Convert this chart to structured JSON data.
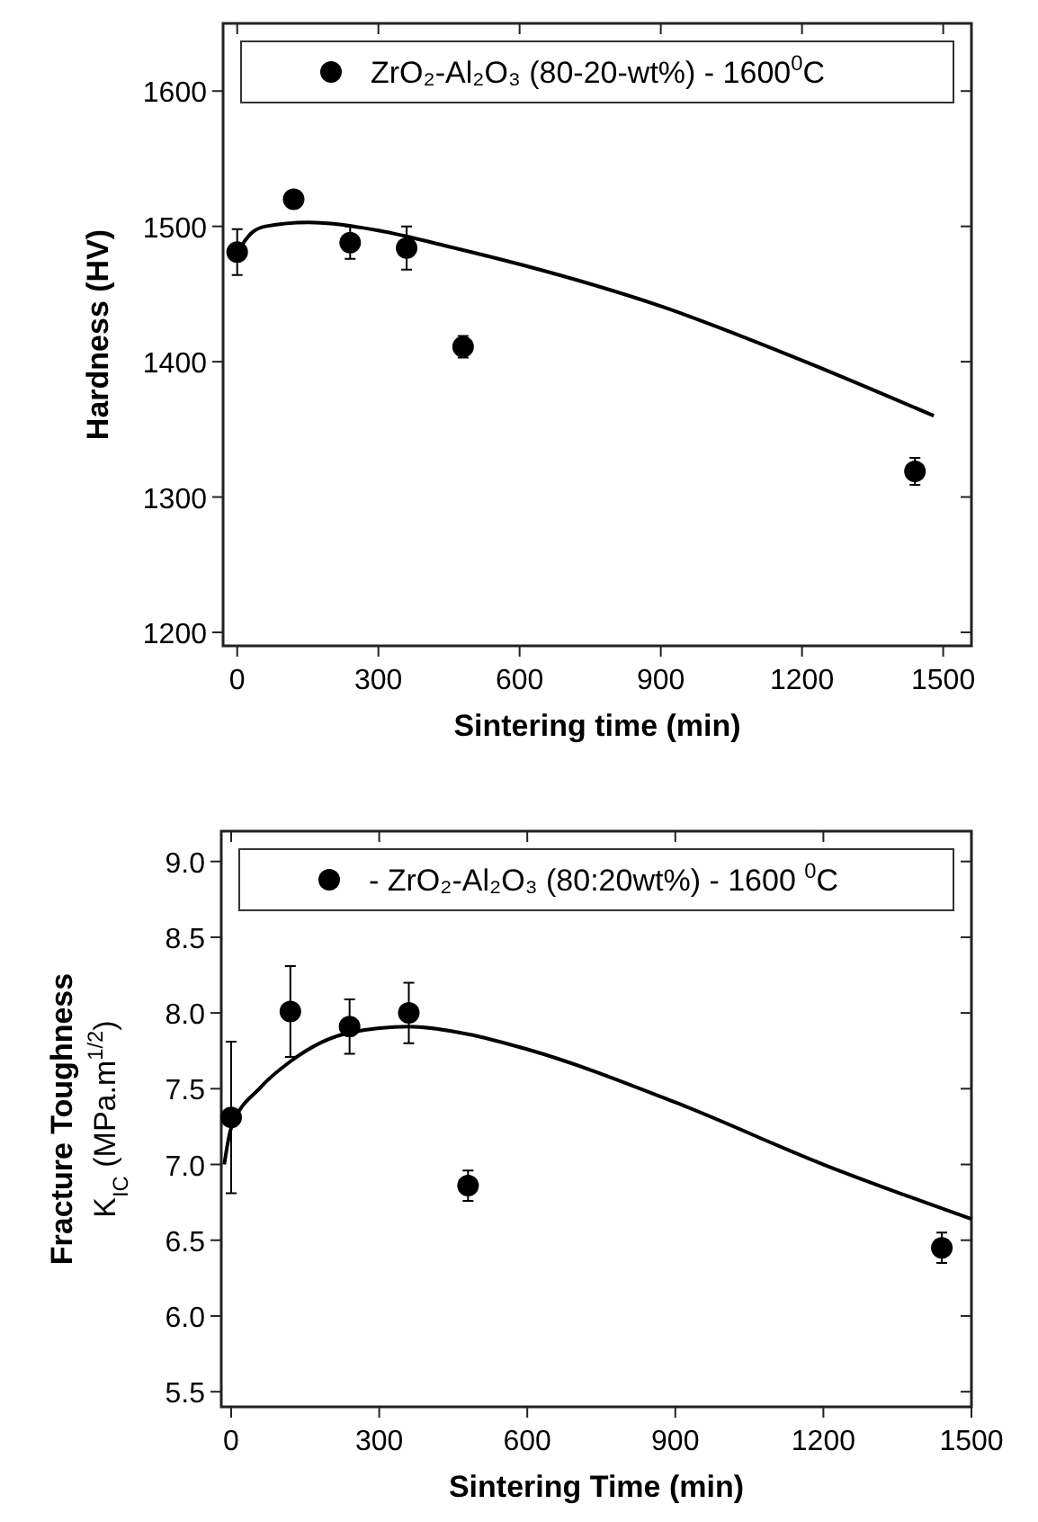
{
  "chart_data": [
    {
      "type": "scatter",
      "xlabel": "Sintering time (min)",
      "ylabel": "Hardness (HV)",
      "xlim": [
        -30,
        1560
      ],
      "ylim": [
        1190,
        1650
      ],
      "xticks": [
        0,
        300,
        600,
        900,
        1200,
        1500
      ],
      "yticks": [
        1200,
        1300,
        1400,
        1500,
        1600
      ],
      "legend": "top",
      "grid": false,
      "series": [
        {
          "name": "ZrO₂-Al₂O₃ (80-20-wt%) - 1600$^{0}$C",
          "color": "#000000",
          "marker": "circle",
          "x": [
            0,
            120,
            240,
            360,
            480,
            1440
          ],
          "values": [
            1481,
            1520,
            1488,
            1484,
            1411,
            1319
          ],
          "errors": [
            17,
            null,
            12,
            16,
            8,
            10
          ]
        },
        {
          "type": "line",
          "color": "#000000",
          "marker": "none",
          "line_style": "solid",
          "x": [
            0,
            30,
            60,
            150,
            300,
            450,
            600,
            900,
            1200,
            1480
          ],
          "values": [
            1481,
            1495,
            1500,
            1503,
            1497,
            1485,
            1472,
            1441,
            1401,
            1360
          ]
        }
      ]
    },
    {
      "type": "scatter",
      "xlabel": "Sintering Time (min)",
      "ylabel": "Fracture Toughness\nK$_{IC}$ (MPa.m$^{1/2}$)",
      "xlim": [
        -20,
        1500
      ],
      "ylim": [
        5.4,
        9.2
      ],
      "xticks": [
        0,
        300,
        600,
        900,
        1200,
        1500
      ],
      "yticks": [
        {
          "value": 5.5,
          "label": "5.5"
        },
        {
          "value": 6,
          "label": "6.0"
        },
        {
          "value": 6.5,
          "label": "6.5"
        },
        {
          "value": 7,
          "label": "7.0"
        },
        {
          "value": 7.5,
          "label": "7.5"
        },
        {
          "value": 8,
          "label": "8.0"
        },
        {
          "value": 8.5,
          "label": "8.5"
        },
        {
          "value": 9,
          "label": "9.0"
        }
      ],
      "legend": "top",
      "grid": false,
      "series": [
        {
          "name": "- ZrO₂-Al₂O₃ (80:20wt%) - 1600 $^{0}$C",
          "color": "#000000",
          "marker": "circle",
          "x": [
            0,
            120,
            240,
            360,
            480,
            1440
          ],
          "values": [
            7.31,
            8.01,
            7.91,
            8.0,
            6.86,
            6.45
          ],
          "errors": [
            0.5,
            0.3,
            0.18,
            0.2,
            0.1,
            0.1
          ]
        },
        {
          "type": "line",
          "color": "#000000",
          "marker": "none",
          "line_style": "solid",
          "x": [
            -14,
            0,
            60,
            120,
            240,
            360,
            480,
            600,
            900,
            1200,
            1500
          ],
          "values": [
            7.0,
            7.24,
            7.51,
            7.68,
            7.87,
            7.91,
            7.86,
            7.76,
            7.41,
            7.0,
            6.64
          ]
        }
      ]
    }
  ]
}
